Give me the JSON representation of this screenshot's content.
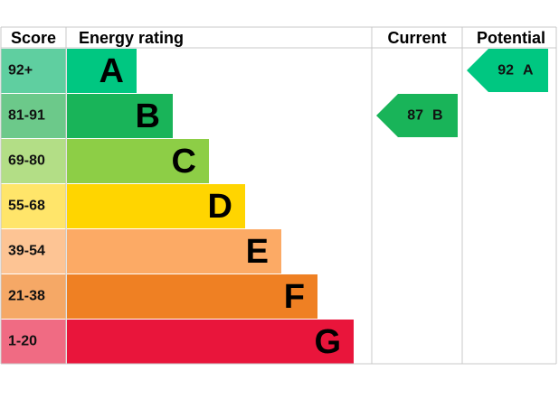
{
  "header": {
    "score": "Score",
    "energy_rating": "Energy rating",
    "current": "Current",
    "potential": "Potential"
  },
  "bands": [
    {
      "score": "92+",
      "letter": "A",
      "color": "#00c781",
      "score_color": "#5fcfa0"
    },
    {
      "score": "81-91",
      "letter": "B",
      "color": "#19b459",
      "score_color": "#6cc98a"
    },
    {
      "score": "69-80",
      "letter": "C",
      "color": "#8dce46",
      "score_color": "#b3de86"
    },
    {
      "score": "55-68",
      "letter": "D",
      "color": "#ffd500",
      "score_color": "#ffe56a"
    },
    {
      "score": "39-54",
      "letter": "E",
      "color": "#fcaa65",
      "score_color": "#fdc494"
    },
    {
      "score": "21-38",
      "letter": "F",
      "color": "#ef8023",
      "score_color": "#f5a866"
    },
    {
      "score": "1-20",
      "letter": "G",
      "color": "#e9153b",
      "score_color": "#f06b83"
    }
  ],
  "current": {
    "value": 87,
    "letter": "B"
  },
  "potential": {
    "value": 92,
    "letter": "A"
  }
}
